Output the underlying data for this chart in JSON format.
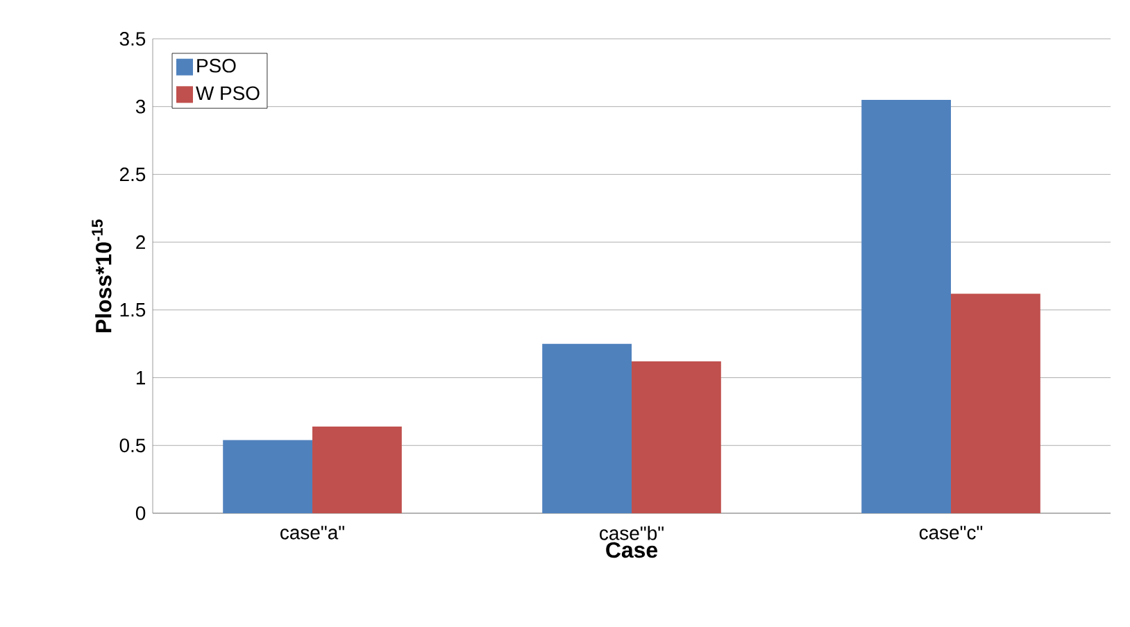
{
  "chart_data": {
    "type": "bar",
    "xlabel": "Case",
    "ylabel": "Ploss*10$^{-15}$",
    "categories": [
      "case\"a\"",
      "case\"b\"",
      "case\"c\""
    ],
    "series": [
      {
        "name": "PSO",
        "color": "#4f81bd",
        "values": [
          0.54,
          1.25,
          3.05
        ]
      },
      {
        "name": "W PSO",
        "color": "#c0504d",
        "values": [
          0.64,
          1.12,
          1.62
        ]
      }
    ],
    "ylim": [
      0,
      3.5
    ],
    "yticks": [
      0,
      0.5,
      1,
      1.5,
      2,
      2.5,
      3,
      3.5
    ],
    "grid": "y",
    "legend": "top left"
  }
}
